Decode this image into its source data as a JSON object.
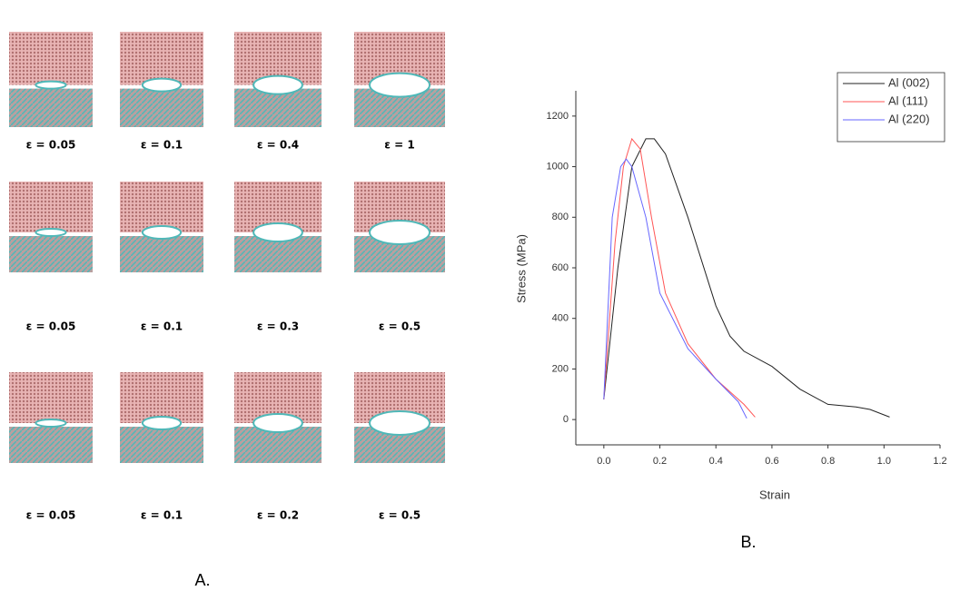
{
  "panel_a": {
    "rows": [
      [
        "ε = 0.05",
        "ε = 0.1",
        "ε = 0.4",
        "ε = 1"
      ],
      [
        "ε = 0.05",
        "ε = 0.1",
        "ε = 0.3",
        "ε = 0.5"
      ],
      [
        "ε = 0.05",
        "ε = 0.1",
        "ε = 0.2",
        "ε = 0.5"
      ]
    ],
    "caption": "A."
  },
  "panel_b": {
    "caption": "B."
  },
  "chart_data": {
    "type": "line",
    "x_label": "Strain",
    "y_label": "Stress (MPa)",
    "xlim": [
      -0.1,
      1.2
    ],
    "ylim": [
      -100,
      1300
    ],
    "xticks": [
      {
        "value": 0,
        "label": "0.0"
      },
      0.2,
      0.4,
      0.6,
      0.8,
      {
        "value": 1,
        "label": "1.0"
      },
      1.2
    ],
    "yticks": [
      0,
      200,
      400,
      600,
      800,
      1000,
      1200
    ],
    "legend": "top-right",
    "series": [
      {
        "name": "Al (002)",
        "color": "#222222",
        "x": [
          0.0,
          0.05,
          0.1,
          0.15,
          0.18,
          0.22,
          0.3,
          0.4,
          0.45,
          0.5,
          0.6,
          0.7,
          0.8,
          0.9,
          0.95,
          1.02
        ],
        "values": [
          80,
          600,
          1000,
          1110,
          1110,
          1050,
          800,
          450,
          330,
          270,
          210,
          120,
          60,
          50,
          40,
          10
        ]
      },
      {
        "name": "Al (111)",
        "color": "#ff5555",
        "x": [
          0.0,
          0.04,
          0.07,
          0.1,
          0.13,
          0.17,
          0.22,
          0.3,
          0.4,
          0.5,
          0.54
        ],
        "values": [
          80,
          700,
          1000,
          1110,
          1070,
          800,
          500,
          300,
          160,
          60,
          10
        ]
      },
      {
        "name": "Al (220)",
        "color": "#6666ff",
        "x": [
          0.0,
          0.03,
          0.06,
          0.08,
          0.1,
          0.15,
          0.2,
          0.3,
          0.4,
          0.48,
          0.51
        ],
        "values": [
          80,
          800,
          1000,
          1030,
          1000,
          800,
          500,
          280,
          160,
          70,
          5
        ]
      }
    ]
  }
}
